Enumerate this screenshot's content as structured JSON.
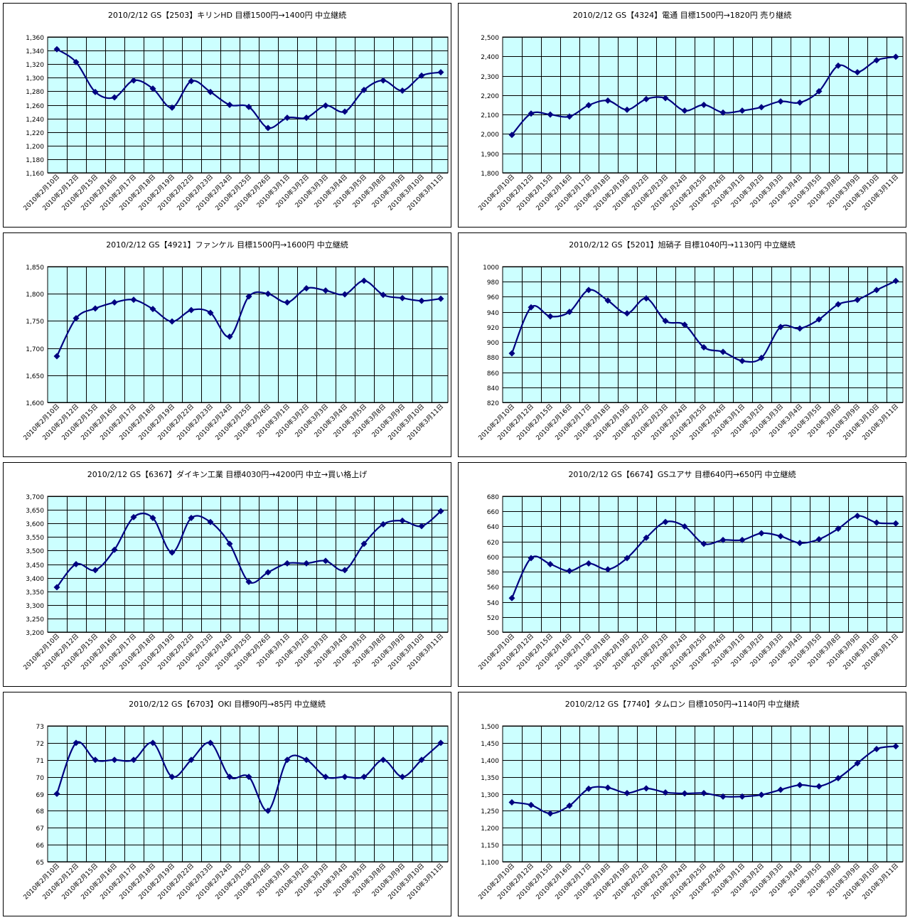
{
  "style": {
    "plot_background": "#CCFFFF",
    "grid_color": "#000000",
    "line_color": "#000080",
    "marker_color": "#000080"
  },
  "dates": [
    "2010年2月10日",
    "2010年2月12日",
    "2010年2月15日",
    "2010年2月16日",
    "2010年2月17日",
    "2010年2月18日",
    "2010年2月19日",
    "2010年2月22日",
    "2010年2月23日",
    "2010年2月24日",
    "2010年2月25日",
    "2010年2月26日",
    "2010年3月1日",
    "2010年3月2日",
    "2010年3月3日",
    "2010年3月4日",
    "2010年3月5日",
    "2010年3月8日",
    "2010年3月9日",
    "2010年3月10日",
    "2010年3月11日"
  ],
  "chart_data": [
    {
      "type": "line",
      "title": "2010/2/12 GS【2503】キリンHD 目標1500円→1400円 中立継続",
      "ylim": [
        1160,
        1360
      ],
      "ystep": 20,
      "ytick_format": "comma",
      "values": [
        1342,
        1323,
        1279,
        1271,
        1296,
        1284,
        1256,
        1295,
        1279,
        1260,
        1257,
        1226,
        1241,
        1241,
        1259,
        1250,
        1282,
        1296,
        1281,
        1303,
        1308
      ]
    },
    {
      "type": "line",
      "title": "2010/2/12 GS【4324】電通 目標1500円→1820円 売り継続",
      "ylim": [
        1800,
        2500
      ],
      "ystep": 100,
      "ytick_format": "comma",
      "values": [
        1995,
        2105,
        2100,
        2090,
        2148,
        2172,
        2125,
        2180,
        2185,
        2120,
        2150,
        2110,
        2120,
        2138,
        2168,
        2162,
        2220,
        2352,
        2318,
        2380,
        2398
      ]
    },
    {
      "type": "line",
      "title": "2010/2/12 GS【4921】ファンケル 目標1500円→1600円 中立継続",
      "ylim": [
        1600,
        1850
      ],
      "ystep": 50,
      "ytick_format": "comma",
      "values": [
        1685,
        1755,
        1773,
        1784,
        1789,
        1772,
        1749,
        1770,
        1765,
        1721,
        1795,
        1800,
        1784,
        1810,
        1806,
        1799,
        1824,
        1798,
        1792,
        1787,
        1791
      ]
    },
    {
      "type": "line",
      "title": "2010/2/12 GS【5201】旭硝子 目標1040円→1130円 中立継続",
      "ylim": [
        820,
        1000
      ],
      "ystep": 20,
      "ytick_format": "plain",
      "values": [
        885,
        946,
        934,
        940,
        969,
        955,
        938,
        958,
        928,
        923,
        893,
        887,
        875,
        879,
        920,
        918,
        930,
        950,
        956,
        969,
        981
      ]
    },
    {
      "type": "line",
      "title": "2010/2/12 GS【6367】ダイキン工業 目標4030円→4200円 中立→買い格上げ",
      "ylim": [
        3200,
        3700
      ],
      "ystep": 50,
      "ytick_format": "comma",
      "values": [
        3365,
        3450,
        3428,
        3503,
        3623,
        3620,
        3493,
        3620,
        3605,
        3525,
        3385,
        3420,
        3453,
        3453,
        3462,
        3428,
        3525,
        3597,
        3610,
        3590,
        3645
      ]
    },
    {
      "type": "line",
      "title": "2010/2/12 GS【6674】GSユアサ 目標640円→650円 中立継続",
      "ylim": [
        500,
        680
      ],
      "ystep": 20,
      "ytick_format": "plain",
      "values": [
        545,
        598,
        590,
        581,
        591,
        583,
        598,
        625,
        646,
        640,
        617,
        622,
        622,
        631,
        627,
        618,
        623,
        637,
        654,
        645,
        644
      ]
    },
    {
      "type": "line",
      "title": "2010/2/12 GS【6703】OKI 目標90円→85円 中立継続",
      "ylim": [
        65,
        73
      ],
      "ystep": 1,
      "ytick_format": "plain",
      "values": [
        69,
        72,
        71,
        71,
        71,
        72,
        70,
        71,
        72,
        70,
        70,
        68,
        71,
        71,
        70,
        70,
        70,
        71,
        70,
        71,
        72
      ]
    },
    {
      "type": "line",
      "title": "2010/2/12 GS【7740】タムロン 目標1050円→1140円 中立継続",
      "ylim": [
        1100,
        1500
      ],
      "ystep": 50,
      "ytick_format": "comma",
      "values": [
        1275,
        1267,
        1242,
        1265,
        1315,
        1318,
        1302,
        1316,
        1304,
        1301,
        1302,
        1292,
        1292,
        1297,
        1312,
        1326,
        1322,
        1346,
        1390,
        1432,
        1440
      ]
    }
  ]
}
